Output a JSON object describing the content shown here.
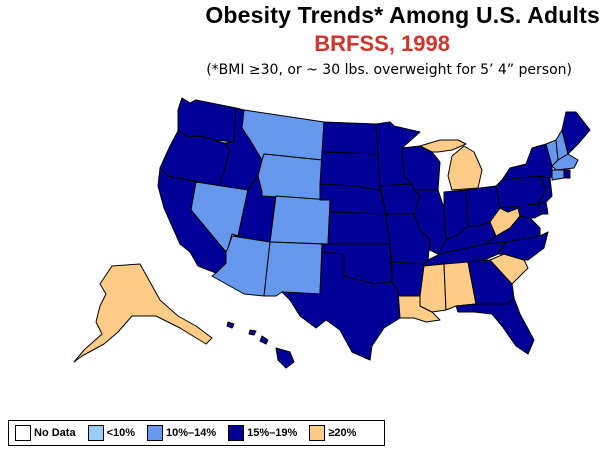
{
  "title": "Obesity Trends*  Among U.S. Adults",
  "subtitle": "BRFSS, 1998",
  "note": "(*BMI ≥30, or ~ 30 lbs. overweight for 5’ 4” person)",
  "colors": {
    "no_data": "#ffffff",
    "lt10": "#99ccff",
    "c10_14": "#6699ee",
    "c15_19": "#000099",
    "ge20": "#ffcc88"
  },
  "legend": [
    {
      "label": "No Data",
      "category": "no_data"
    },
    {
      "label": "<10%",
      "category": "lt10"
    },
    {
      "label": "10%–14%",
      "category": "c10_14"
    },
    {
      "label": "15%–19%",
      "category": "c15_19"
    },
    {
      "label": "≥20%",
      "category": "ge20"
    }
  ],
  "states": [
    {
      "code": "WA",
      "category": "c15_19"
    },
    {
      "code": "OR",
      "category": "c15_19"
    },
    {
      "code": "CA",
      "category": "c15_19"
    },
    {
      "code": "ID",
      "category": "c15_19"
    },
    {
      "code": "NV",
      "category": "c10_14"
    },
    {
      "code": "UT",
      "category": "c15_19"
    },
    {
      "code": "AZ",
      "category": "c10_14"
    },
    {
      "code": "MT",
      "category": "c10_14"
    },
    {
      "code": "WY",
      "category": "c10_14"
    },
    {
      "code": "CO",
      "category": "c10_14"
    },
    {
      "code": "NM",
      "category": "c10_14"
    },
    {
      "code": "ND",
      "category": "c15_19"
    },
    {
      "code": "SD",
      "category": "c15_19"
    },
    {
      "code": "NE",
      "category": "c15_19"
    },
    {
      "code": "KS",
      "category": "c15_19"
    },
    {
      "code": "OK",
      "category": "c15_19"
    },
    {
      "code": "TX",
      "category": "c15_19"
    },
    {
      "code": "MN",
      "category": "c15_19"
    },
    {
      "code": "IA",
      "category": "c15_19"
    },
    {
      "code": "MO",
      "category": "c15_19"
    },
    {
      "code": "AR",
      "category": "c15_19"
    },
    {
      "code": "LA",
      "category": "ge20"
    },
    {
      "code": "WI",
      "category": "c15_19"
    },
    {
      "code": "IL",
      "category": "c15_19"
    },
    {
      "code": "MI",
      "category": "ge20"
    },
    {
      "code": "IN",
      "category": "c15_19"
    },
    {
      "code": "OH",
      "category": "c15_19"
    },
    {
      "code": "KY",
      "category": "c15_19"
    },
    {
      "code": "TN",
      "category": "c15_19"
    },
    {
      "code": "MS",
      "category": "ge20"
    },
    {
      "code": "AL",
      "category": "ge20"
    },
    {
      "code": "GA",
      "category": "c15_19"
    },
    {
      "code": "FL",
      "category": "c15_19"
    },
    {
      "code": "SC",
      "category": "ge20"
    },
    {
      "code": "NC",
      "category": "c15_19"
    },
    {
      "code": "VA",
      "category": "c15_19"
    },
    {
      "code": "WV",
      "category": "ge20"
    },
    {
      "code": "PA",
      "category": "c15_19"
    },
    {
      "code": "NY",
      "category": "c15_19"
    },
    {
      "code": "VT",
      "category": "c10_14"
    },
    {
      "code": "NH",
      "category": "c10_14"
    },
    {
      "code": "ME",
      "category": "c15_19"
    },
    {
      "code": "MA",
      "category": "c10_14"
    },
    {
      "code": "CT",
      "category": "c10_14"
    },
    {
      "code": "RI",
      "category": "c15_19"
    },
    {
      "code": "NJ",
      "category": "c15_19"
    },
    {
      "code": "DE",
      "category": "c15_19"
    },
    {
      "code": "MD",
      "category": "c15_19"
    },
    {
      "code": "AK",
      "category": "ge20"
    },
    {
      "code": "HI",
      "category": "c15_19"
    }
  ]
}
